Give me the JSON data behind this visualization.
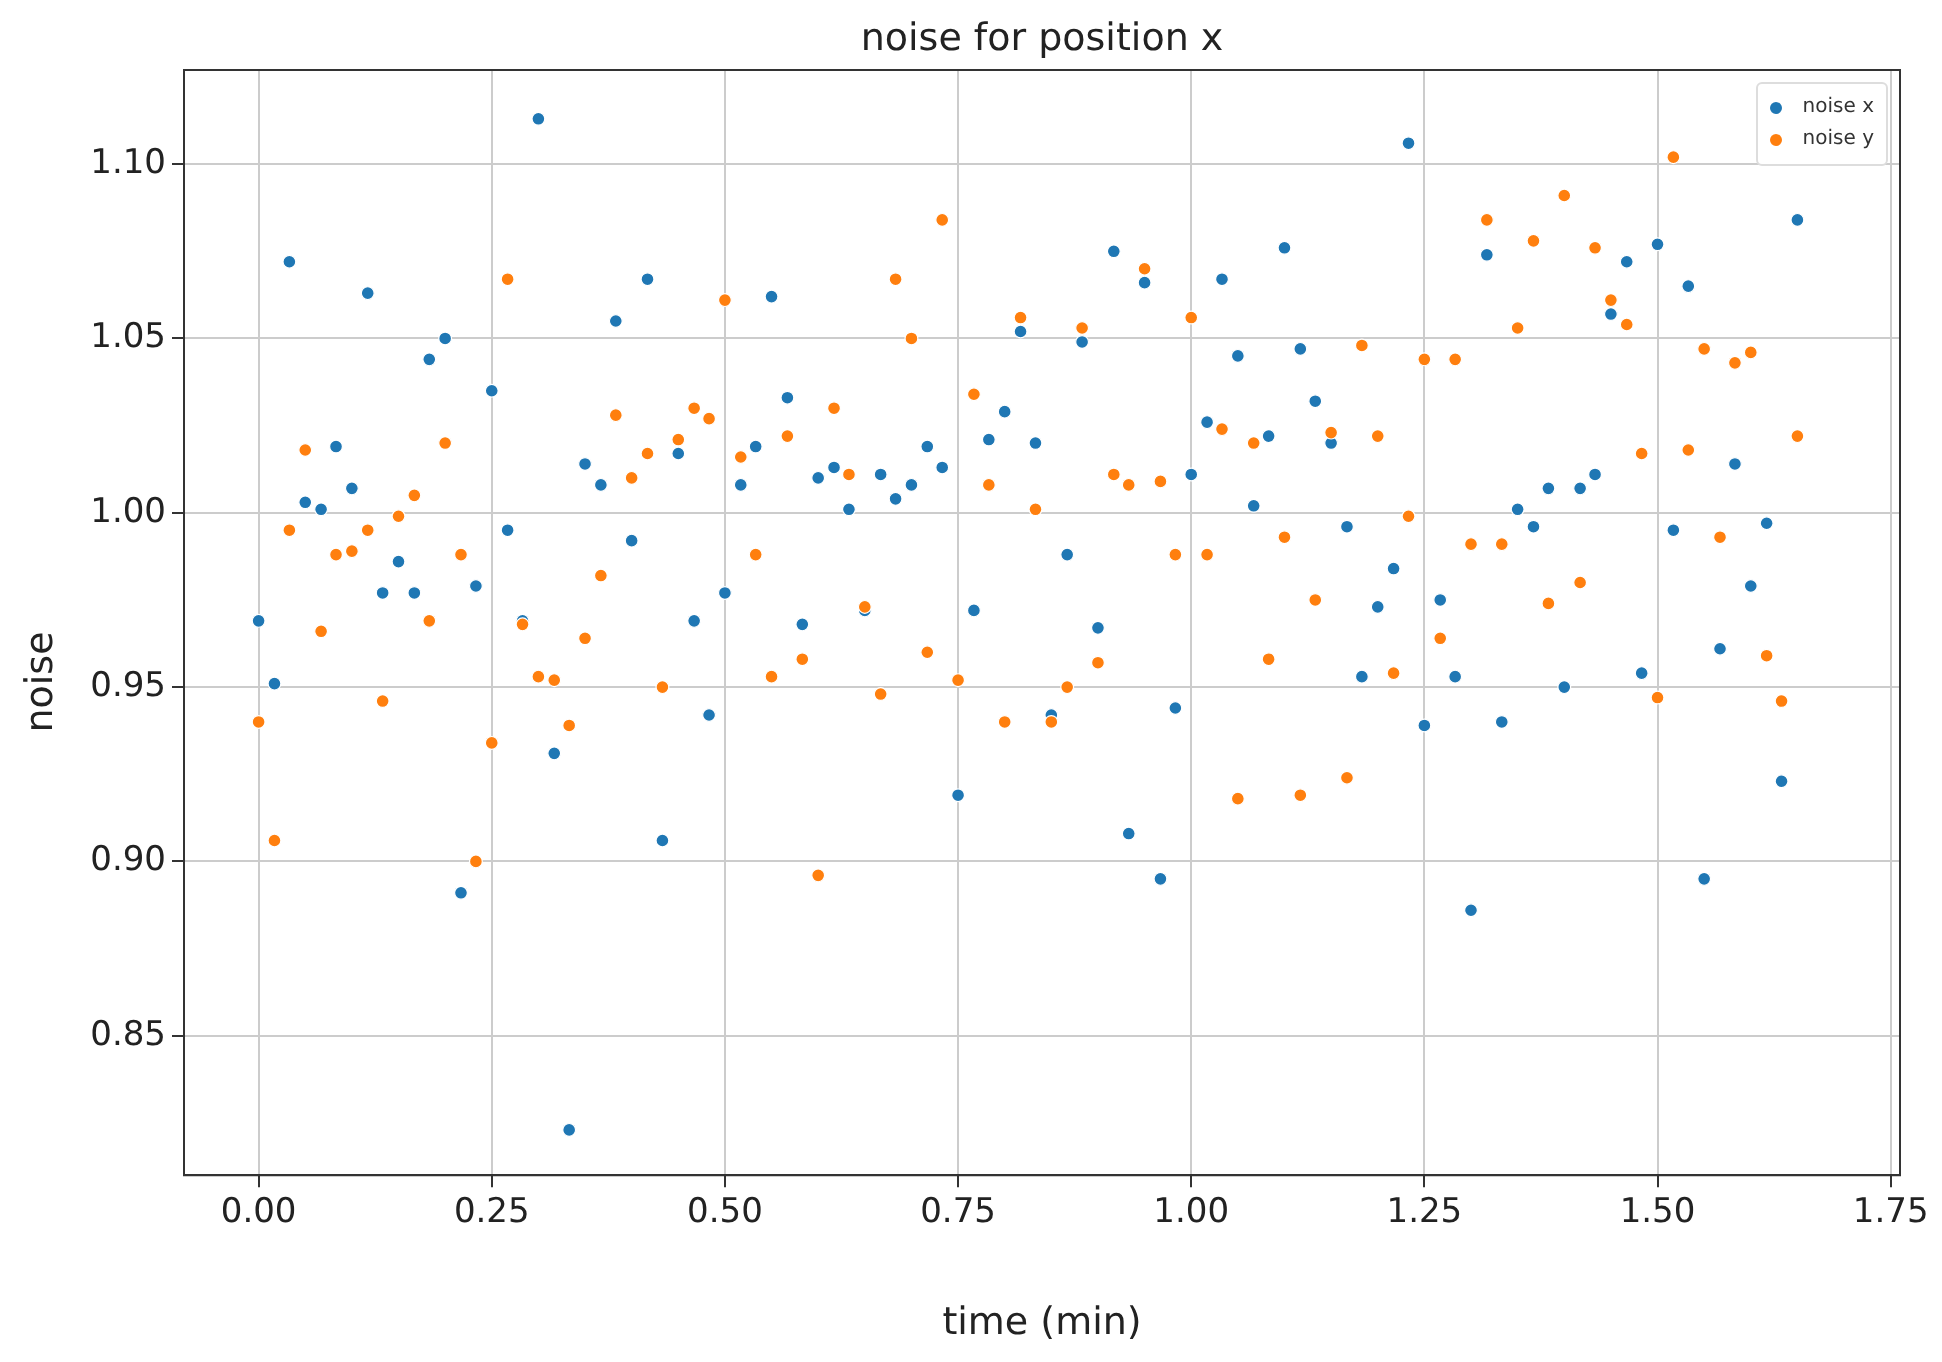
{
  "chart_data": {
    "type": "scatter",
    "title": "noise for position x",
    "xlabel": "time (min)",
    "ylabel": "noise",
    "x": [
      0,
      0.017,
      0.033,
      0.05,
      0.067,
      0.083,
      0.1,
      0.117,
      0.133,
      0.15,
      0.167,
      0.183,
      0.2,
      0.217,
      0.233,
      0.25,
      0.267,
      0.283,
      0.3,
      0.317,
      0.333,
      0.35,
      0.367,
      0.383,
      0.4,
      0.417,
      0.433,
      0.45,
      0.467,
      0.483,
      0.5,
      0.517,
      0.533,
      0.55,
      0.567,
      0.583,
      0.6,
      0.617,
      0.633,
      0.65,
      0.667,
      0.683,
      0.7,
      0.717,
      0.733,
      0.75,
      0.767,
      0.783,
      0.8,
      0.817,
      0.833,
      0.85,
      0.867,
      0.883,
      0.9,
      0.917,
      0.933,
      0.95,
      0.967,
      0.983,
      1,
      1.017,
      1.033,
      1.05,
      1.067,
      1.083,
      1.1,
      1.117,
      1.133,
      1.15,
      1.167,
      1.183,
      1.2,
      1.217,
      1.233,
      1.25,
      1.267,
      1.283,
      1.3,
      1.317,
      1.333,
      1.35,
      1.367,
      1.383,
      1.4,
      1.417,
      1.433,
      1.45,
      1.467,
      1.483,
      1.5,
      1.517,
      1.533,
      1.55,
      1.567,
      1.583,
      1.6,
      1.617,
      1.633,
      1.65
    ],
    "series": [
      {
        "name": "noise x",
        "color": "#1f77b4",
        "values": [
          0.969,
          0.951,
          1.072,
          1.003,
          1.001,
          1.019,
          1.007,
          1.063,
          0.977,
          0.986,
          0.977,
          1.044,
          1.05,
          0.891,
          0.979,
          1.035,
          0.995,
          0.969,
          1.113,
          0.931,
          0.823,
          1.014,
          1.008,
          1.055,
          0.992,
          1.067,
          0.906,
          1.017,
          0.969,
          0.942,
          0.977,
          1.008,
          1.019,
          1.062,
          1.033,
          0.968,
          1.01,
          1.013,
          1.001,
          0.972,
          1.011,
          1.004,
          1.008,
          1.019,
          1.013,
          0.919,
          0.972,
          1.021,
          1.029,
          1.052,
          1.02,
          0.942,
          0.988,
          1.049,
          0.967,
          1.075,
          0.908,
          1.066,
          0.895,
          0.944,
          1.011,
          1.026,
          1.067,
          1.045,
          1.002,
          1.022,
          1.076,
          1.047,
          1.032,
          1.02,
          0.996,
          0.953,
          0.973,
          0.984,
          1.106,
          0.939,
          0.975,
          0.953,
          0.886,
          1.074,
          0.94,
          1.001,
          0.996,
          1.007,
          0.95,
          1.007,
          1.011,
          1.057,
          1.072,
          0.954,
          1.077,
          0.995,
          1.065,
          0.895,
          0.961,
          1.014,
          0.979,
          0.997,
          0.923,
          1.084
        ]
      },
      {
        "name": "noise y",
        "color": "#ff7f0e",
        "values": [
          0.94,
          0.906,
          0.995,
          1.018,
          0.966,
          0.988,
          0.989,
          0.995,
          0.946,
          0.999,
          1.005,
          0.969,
          1.02,
          0.988,
          0.9,
          0.934,
          1.067,
          0.968,
          0.953,
          0.952,
          0.939,
          0.964,
          0.982,
          1.028,
          1.01,
          1.017,
          0.95,
          1.021,
          1.03,
          1.027,
          1.061,
          1.016,
          0.988,
          0.953,
          1.022,
          0.958,
          0.896,
          1.03,
          1.011,
          0.973,
          0.948,
          1.067,
          1.05,
          0.96,
          1.084,
          0.952,
          1.034,
          1.008,
          0.94,
          1.056,
          1.001,
          0.94,
          0.95,
          1.053,
          0.957,
          1.011,
          1.008,
          1.07,
          1.009,
          0.988,
          1.056,
          0.988,
          1.024,
          0.918,
          1.02,
          0.958,
          0.993,
          0.919,
          0.975,
          1.023,
          0.924,
          1.048,
          1.022,
          0.954,
          0.999,
          1.044,
          0.964,
          1.044,
          0.991,
          1.084,
          0.991,
          1.053,
          1.078,
          0.974,
          1.091,
          0.98,
          1.076,
          1.061,
          1.054,
          1.017,
          0.947,
          1.102,
          1.018,
          1.047,
          0.993,
          1.043,
          1.046,
          0.959,
          0.946,
          1.022
        ]
      }
    ],
    "xlim": [
      -0.08,
      1.76
    ],
    "xticks": [
      {
        "value": 0,
        "label": "0.00"
      },
      {
        "value": 0.25,
        "label": "0.25"
      },
      {
        "value": 0.5,
        "label": "0.50"
      },
      {
        "value": 0.75,
        "label": "0.75"
      },
      {
        "value": 1,
        "label": "1.00"
      },
      {
        "value": 1.25,
        "label": "1.25"
      },
      {
        "value": 1.5,
        "label": "1.50"
      },
      {
        "value": 1.75,
        "label": "1.75"
      }
    ],
    "ylim": [
      0.81,
      1.127
    ],
    "yticks": [
      {
        "value": 0.85,
        "label": "0.85"
      },
      {
        "value": 0.9,
        "label": "0.90"
      },
      {
        "value": 0.95,
        "label": "0.95"
      },
      {
        "value": 1,
        "label": "1.00"
      },
      {
        "value": 1.05,
        "label": "1.05"
      },
      {
        "value": 1.1,
        "label": "1.10"
      }
    ],
    "grid": true,
    "legend": "top right",
    "marker": "circle"
  }
}
